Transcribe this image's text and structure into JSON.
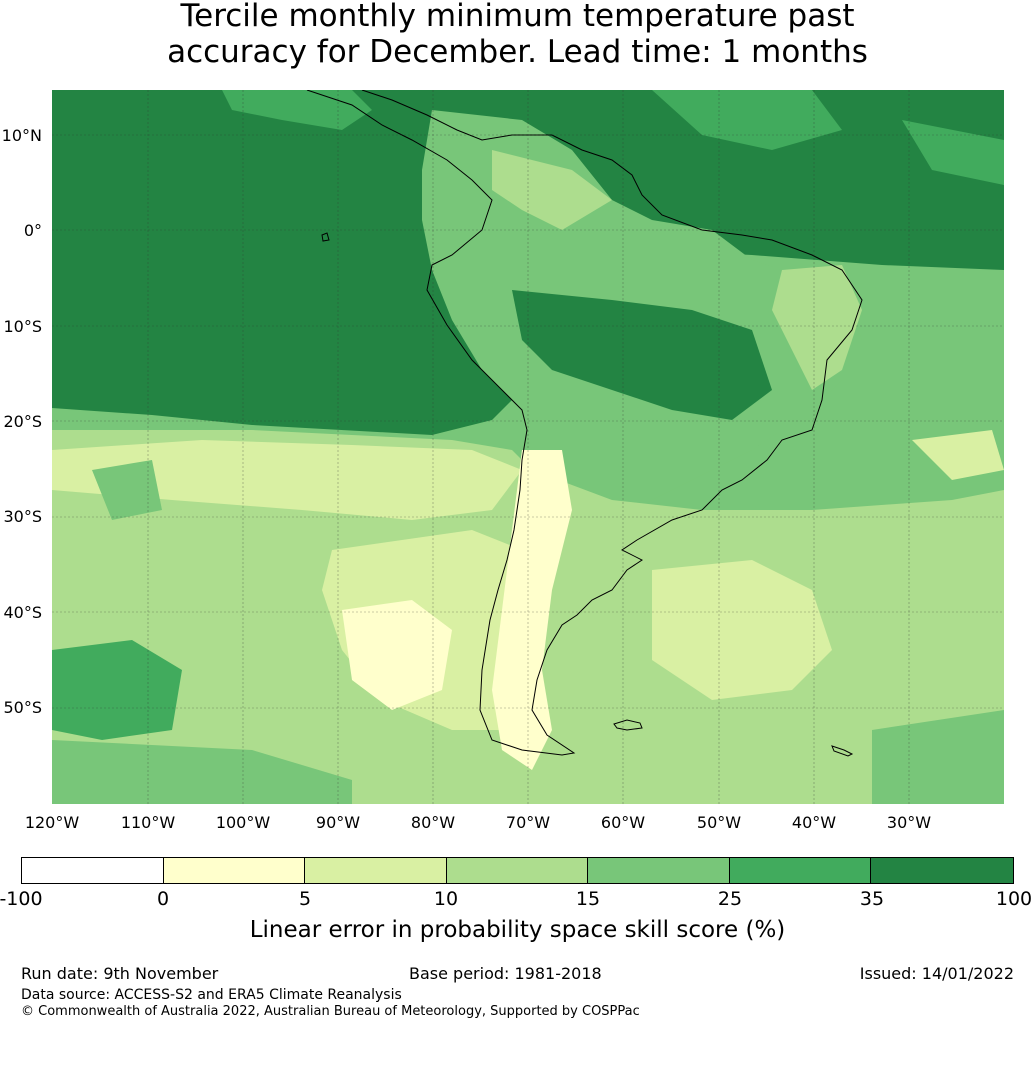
{
  "title": {
    "line1": "Tercile monthly minimum temperature past",
    "line2": "accuracy for December. Lead time: 1 months"
  },
  "map": {
    "lat_labels": [
      "10°N",
      "0°",
      "10°S",
      "20°S",
      "30°S",
      "40°S",
      "50°S"
    ],
    "lon_labels": [
      "120°W",
      "110°W",
      "100°W",
      "90°W",
      "80°W",
      "70°W",
      "60°W",
      "50°W",
      "40°W",
      "30°W"
    ],
    "colors": {
      "band_0": "#ffffff",
      "band_1": "#ffffcc",
      "band_2": "#d9f0a3",
      "band_3": "#addd8e",
      "band_4": "#78c679",
      "band_5": "#41ab5d",
      "band_6": "#238443",
      "coastline": "#000000"
    }
  },
  "colorbar": {
    "ticks": [
      "-100",
      "0",
      "5",
      "10",
      "15",
      "25",
      "35",
      "100"
    ],
    "colors": [
      "#ffffff",
      "#ffffcc",
      "#d9f0a3",
      "#addd8e",
      "#78c679",
      "#41ab5d",
      "#238443"
    ],
    "label": "Linear error in probability space skill score (%)"
  },
  "footer": {
    "run_date": "Run date: 9th November",
    "base_period": "Base period: 1981-2018",
    "issued": "Issued: 14/01/2022",
    "data_source": "Data source: ACCESS-S2 and ERA5 Climate Reanalysis",
    "copyright": "© Commonwealth of Australia 2022, Australian Bureau of Meteorology, Supported by COSPPac"
  }
}
